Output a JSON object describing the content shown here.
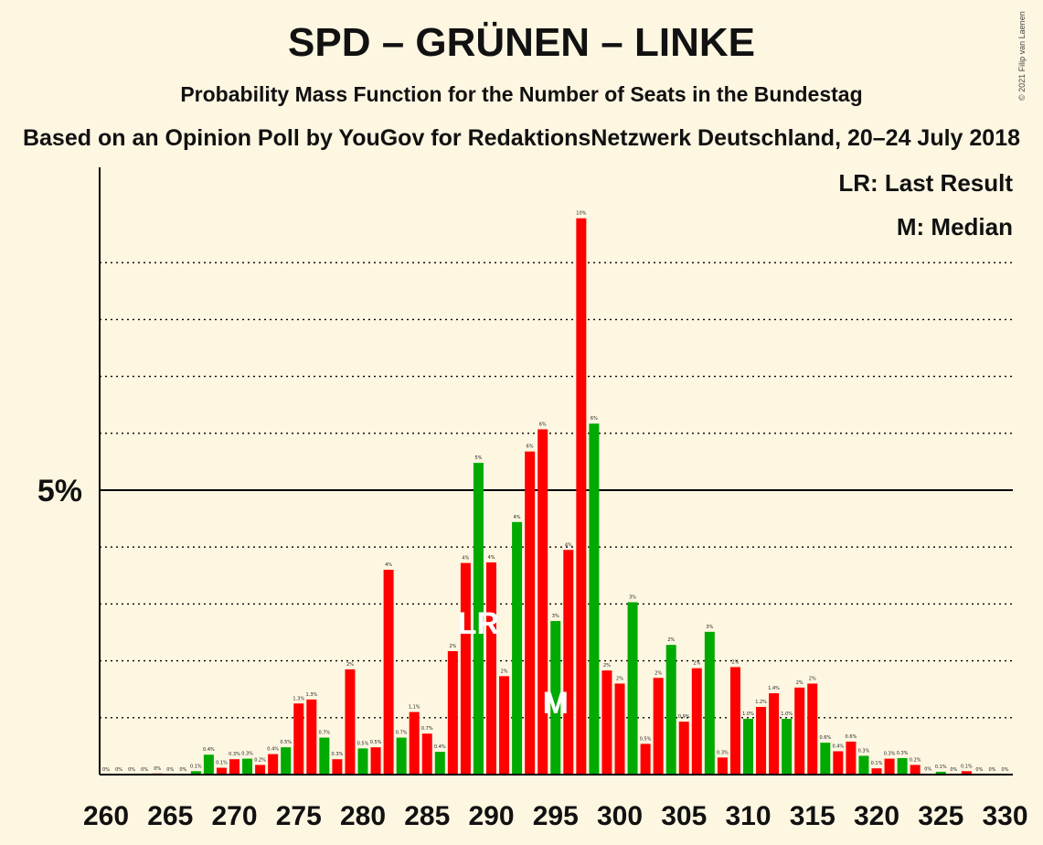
{
  "title": "SPD – GRÜNEN – LINKE",
  "subtitle": "Probability Mass Function for the Number of Seats in the Bundestag",
  "subtitle2": "Based on an Opinion Poll by YouGov for RedaktionsNetzwerk Deutschland, 20–24 July 2018",
  "copyright": "© 2021 Filip van Laenen",
  "legend": {
    "last_result": "LR: Last Result",
    "median": "M: Median"
  },
  "colors": {
    "background": "#fdf6e1",
    "green": "#00aa00",
    "red": "#ff0000",
    "text": "#111111",
    "bar_label": "#222222"
  },
  "chart_data": {
    "type": "bar",
    "x": [
      260,
      261,
      262,
      263,
      264,
      265,
      266,
      267,
      268,
      269,
      270,
      271,
      272,
      273,
      274,
      275,
      276,
      277,
      278,
      279,
      280,
      281,
      282,
      283,
      284,
      285,
      286,
      287,
      288,
      289,
      290,
      291,
      292,
      293,
      294,
      295,
      296,
      297,
      298,
      299,
      300,
      301,
      302,
      303,
      304,
      305,
      306,
      307,
      308,
      309,
      310,
      311,
      312,
      313,
      314,
      315,
      316,
      317,
      318,
      319,
      320,
      321,
      322,
      323,
      324,
      325,
      326,
      327,
      328,
      329,
      330
    ],
    "values": [
      0,
      0,
      0,
      0,
      0.02,
      0,
      0,
      0.06,
      0.35,
      0.12,
      0.27,
      0.28,
      0.17,
      0.36,
      0.48,
      1.25,
      1.32,
      0.65,
      0.27,
      1.85,
      0.46,
      0.48,
      3.6,
      0.65,
      1.1,
      0.72,
      0.4,
      2.17,
      3.72,
      5.48,
      3.73,
      1.73,
      4.44,
      5.68,
      6.07,
      2.7,
      3.95,
      9.78,
      6.17,
      1.83,
      1.6,
      3.03,
      0.54,
      1.7,
      2.28,
      0.93,
      1.87,
      2.51,
      0.3,
      1.89,
      0.98,
      1.19,
      1.43,
      0.98,
      1.53,
      1.6,
      0.56,
      0.41,
      0.58,
      0.33,
      0.11,
      0.28,
      0.29,
      0.17,
      0.01,
      0.05,
      0,
      0.06,
      0,
      0,
      0
    ],
    "labels": [
      "0%",
      "0%",
      "0%",
      "0%",
      "0%",
      "0%",
      "0%",
      "0.1%",
      "0.4%",
      "0.1%",
      "0.3%",
      "0.3%",
      "0.2%",
      "0.4%",
      "0.5%",
      "1.3%",
      "1.3%",
      "0.7%",
      "0.3%",
      "2%",
      "0.5%",
      "0.5%",
      "4%",
      "0.7%",
      "1.1%",
      "0.7%",
      "0.4%",
      "2%",
      "4%",
      "5%",
      "4%",
      "2%",
      "4%",
      "6%",
      "6%",
      "3%",
      "4%",
      "10%",
      "6%",
      "2%",
      "2%",
      "3%",
      "0.5%",
      "2%",
      "2%",
      "0.9%",
      "2%",
      "3%",
      "0.3%",
      "2%",
      "1.0%",
      "1.2%",
      "1.4%",
      "1.0%",
      "2%",
      "2%",
      "0.6%",
      "0.4%",
      "0.6%",
      "0.3%",
      "0.1%",
      "0.3%",
      "0.3%",
      "0.2%",
      "0%",
      "0.1%",
      "0%",
      "0.1%",
      "0%",
      "0%",
      "0%"
    ],
    "bar_colors": [
      "red",
      "green",
      "red",
      "green",
      "red",
      "green",
      "red",
      "green",
      "green",
      "red",
      "red",
      "green",
      "red",
      "red",
      "green",
      "red",
      "red",
      "green",
      "red",
      "red",
      "green",
      "red",
      "red",
      "green",
      "red",
      "red",
      "green",
      "red",
      "red",
      "green",
      "red",
      "red",
      "green",
      "red",
      "red",
      "green",
      "red",
      "red",
      "green",
      "red",
      "red",
      "green",
      "red",
      "red",
      "green",
      "red",
      "red",
      "green",
      "red",
      "red",
      "green",
      "red",
      "red",
      "green",
      "red",
      "red",
      "green",
      "red",
      "red",
      "green",
      "red",
      "red",
      "green",
      "red",
      "red",
      "green",
      "red",
      "red",
      "green",
      "red",
      "red"
    ],
    "x_ticks": [
      260,
      265,
      270,
      275,
      280,
      285,
      290,
      295,
      300,
      305,
      310,
      315,
      320,
      325,
      330
    ],
    "y_tick_label": "5%",
    "y_tick_value": 5,
    "gridlines": [
      1,
      2,
      3,
      4,
      5,
      6,
      7,
      8,
      9
    ],
    "last_result": {
      "x": 289,
      "label": "LR"
    },
    "median": {
      "x": 295,
      "label": "M"
    }
  }
}
